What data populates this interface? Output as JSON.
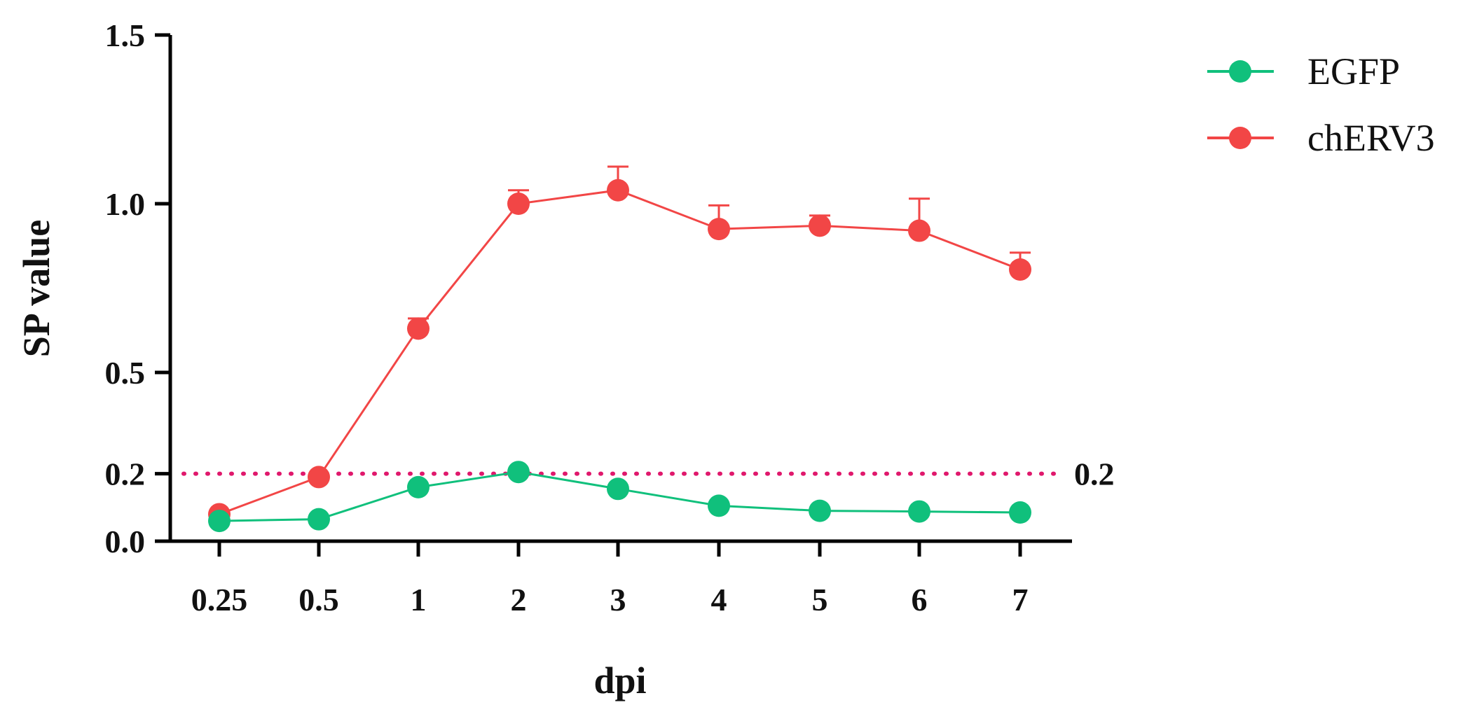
{
  "chart_data": {
    "type": "line",
    "xlabel": "dpi",
    "ylabel": "SP value",
    "categories": [
      "0.25",
      "0.5",
      "1",
      "2",
      "3",
      "4",
      "5",
      "6",
      "7"
    ],
    "y_ticks": [
      "0.0",
      "0.2",
      "0.5",
      "1.0",
      "1.5"
    ],
    "ylim": [
      0,
      1.5
    ],
    "grid": false,
    "legend_position": "top-right",
    "reference_line": {
      "value": 0.2,
      "label": "0.2",
      "style": "dotted",
      "color": "#e0186c"
    },
    "series": [
      {
        "name": "EGFP",
        "color": "#10c07c",
        "values": [
          0.06,
          0.065,
          0.16,
          0.205,
          0.155,
          0.105,
          0.09,
          0.088,
          0.085
        ],
        "error": [
          0,
          0,
          0,
          0,
          0,
          0,
          0,
          0,
          0
        ]
      },
      {
        "name": "chERV3",
        "color": "#f24646",
        "values": [
          0.08,
          0.19,
          0.63,
          1.0,
          1.04,
          0.925,
          0.935,
          0.92,
          0.805
        ],
        "error": [
          0,
          0,
          0.03,
          0.04,
          0.07,
          0.07,
          0.03,
          0.095,
          0.05
        ]
      }
    ]
  }
}
